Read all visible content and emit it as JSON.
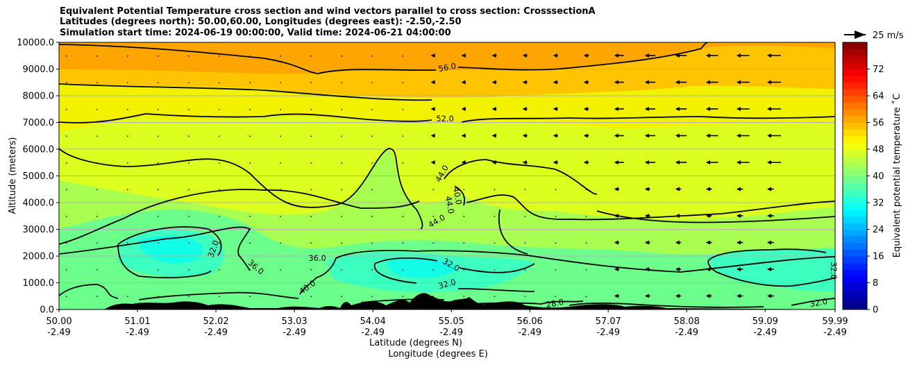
{
  "chart_data": {
    "type": "contour",
    "title_lines": [
      "Equivalent Potential Temperature cross section and wind vectors parallel to cross section: CrosssectionA",
      "Latitudes (degrees north): 50.00,60.00, Longitudes (degrees east): -2.50,-2.50",
      "Simulation start time: 2024-06-19 00:00:00, Valid time: 2024-06-21 04:00:00"
    ],
    "ylabel": "Altitude (meters)",
    "xlabel_lat": "Latitude (degrees N)",
    "xlabel_lon": "Longitude (degrees E)",
    "ylim": [
      0,
      10000
    ],
    "yticks": [
      "0.0",
      "1000.0",
      "2000.0",
      "3000.0",
      "4000.0",
      "5000.0",
      "6000.0",
      "7000.0",
      "8000.0",
      "9000.0",
      "10000.0"
    ],
    "xticks_lat": [
      "50.00",
      "51.01",
      "52.02",
      "53.03",
      "54.04",
      "55.05",
      "56.06",
      "57.07",
      "58.08",
      "59.09",
      "59.99"
    ],
    "xticks_lon": [
      "-2.49",
      "-2.49",
      "-2.49",
      "-2.49",
      "-2.49",
      "-2.49",
      "-2.49",
      "-2.49",
      "-2.49",
      "-2.49",
      "-2.49"
    ],
    "grid": "horizontal",
    "colorbar": {
      "label": "Equivalent potential temperature ˚C",
      "range": [
        0,
        80
      ],
      "ticks": [
        "0",
        "8",
        "16",
        "24",
        "32",
        "40",
        "48",
        "56",
        "64",
        "72"
      ],
      "colormap": "jet"
    },
    "quiver_key": "25 m/s",
    "contour_labels": [
      "56.0",
      "52.0",
      "44.0",
      "40.0",
      "44.0",
      "44.0",
      "36.0",
      "32.0",
      "36.0",
      "40.0",
      "32.0",
      "32.0",
      "28.0",
      "32.0",
      "32.0"
    ],
    "contour_levels": [
      28,
      32,
      36,
      40,
      44,
      48,
      52,
      56
    ]
  },
  "colors": {
    "band_56": "#ffa500",
    "band_52": "#ffc400",
    "band_48": "#f2f200",
    "band_44": "#ddff1f",
    "band_40": "#a8ff4f",
    "band_36": "#6cff8c",
    "band_32": "#3dffc0",
    "band_28": "#12ffe6",
    "terrain": "#000000"
  }
}
